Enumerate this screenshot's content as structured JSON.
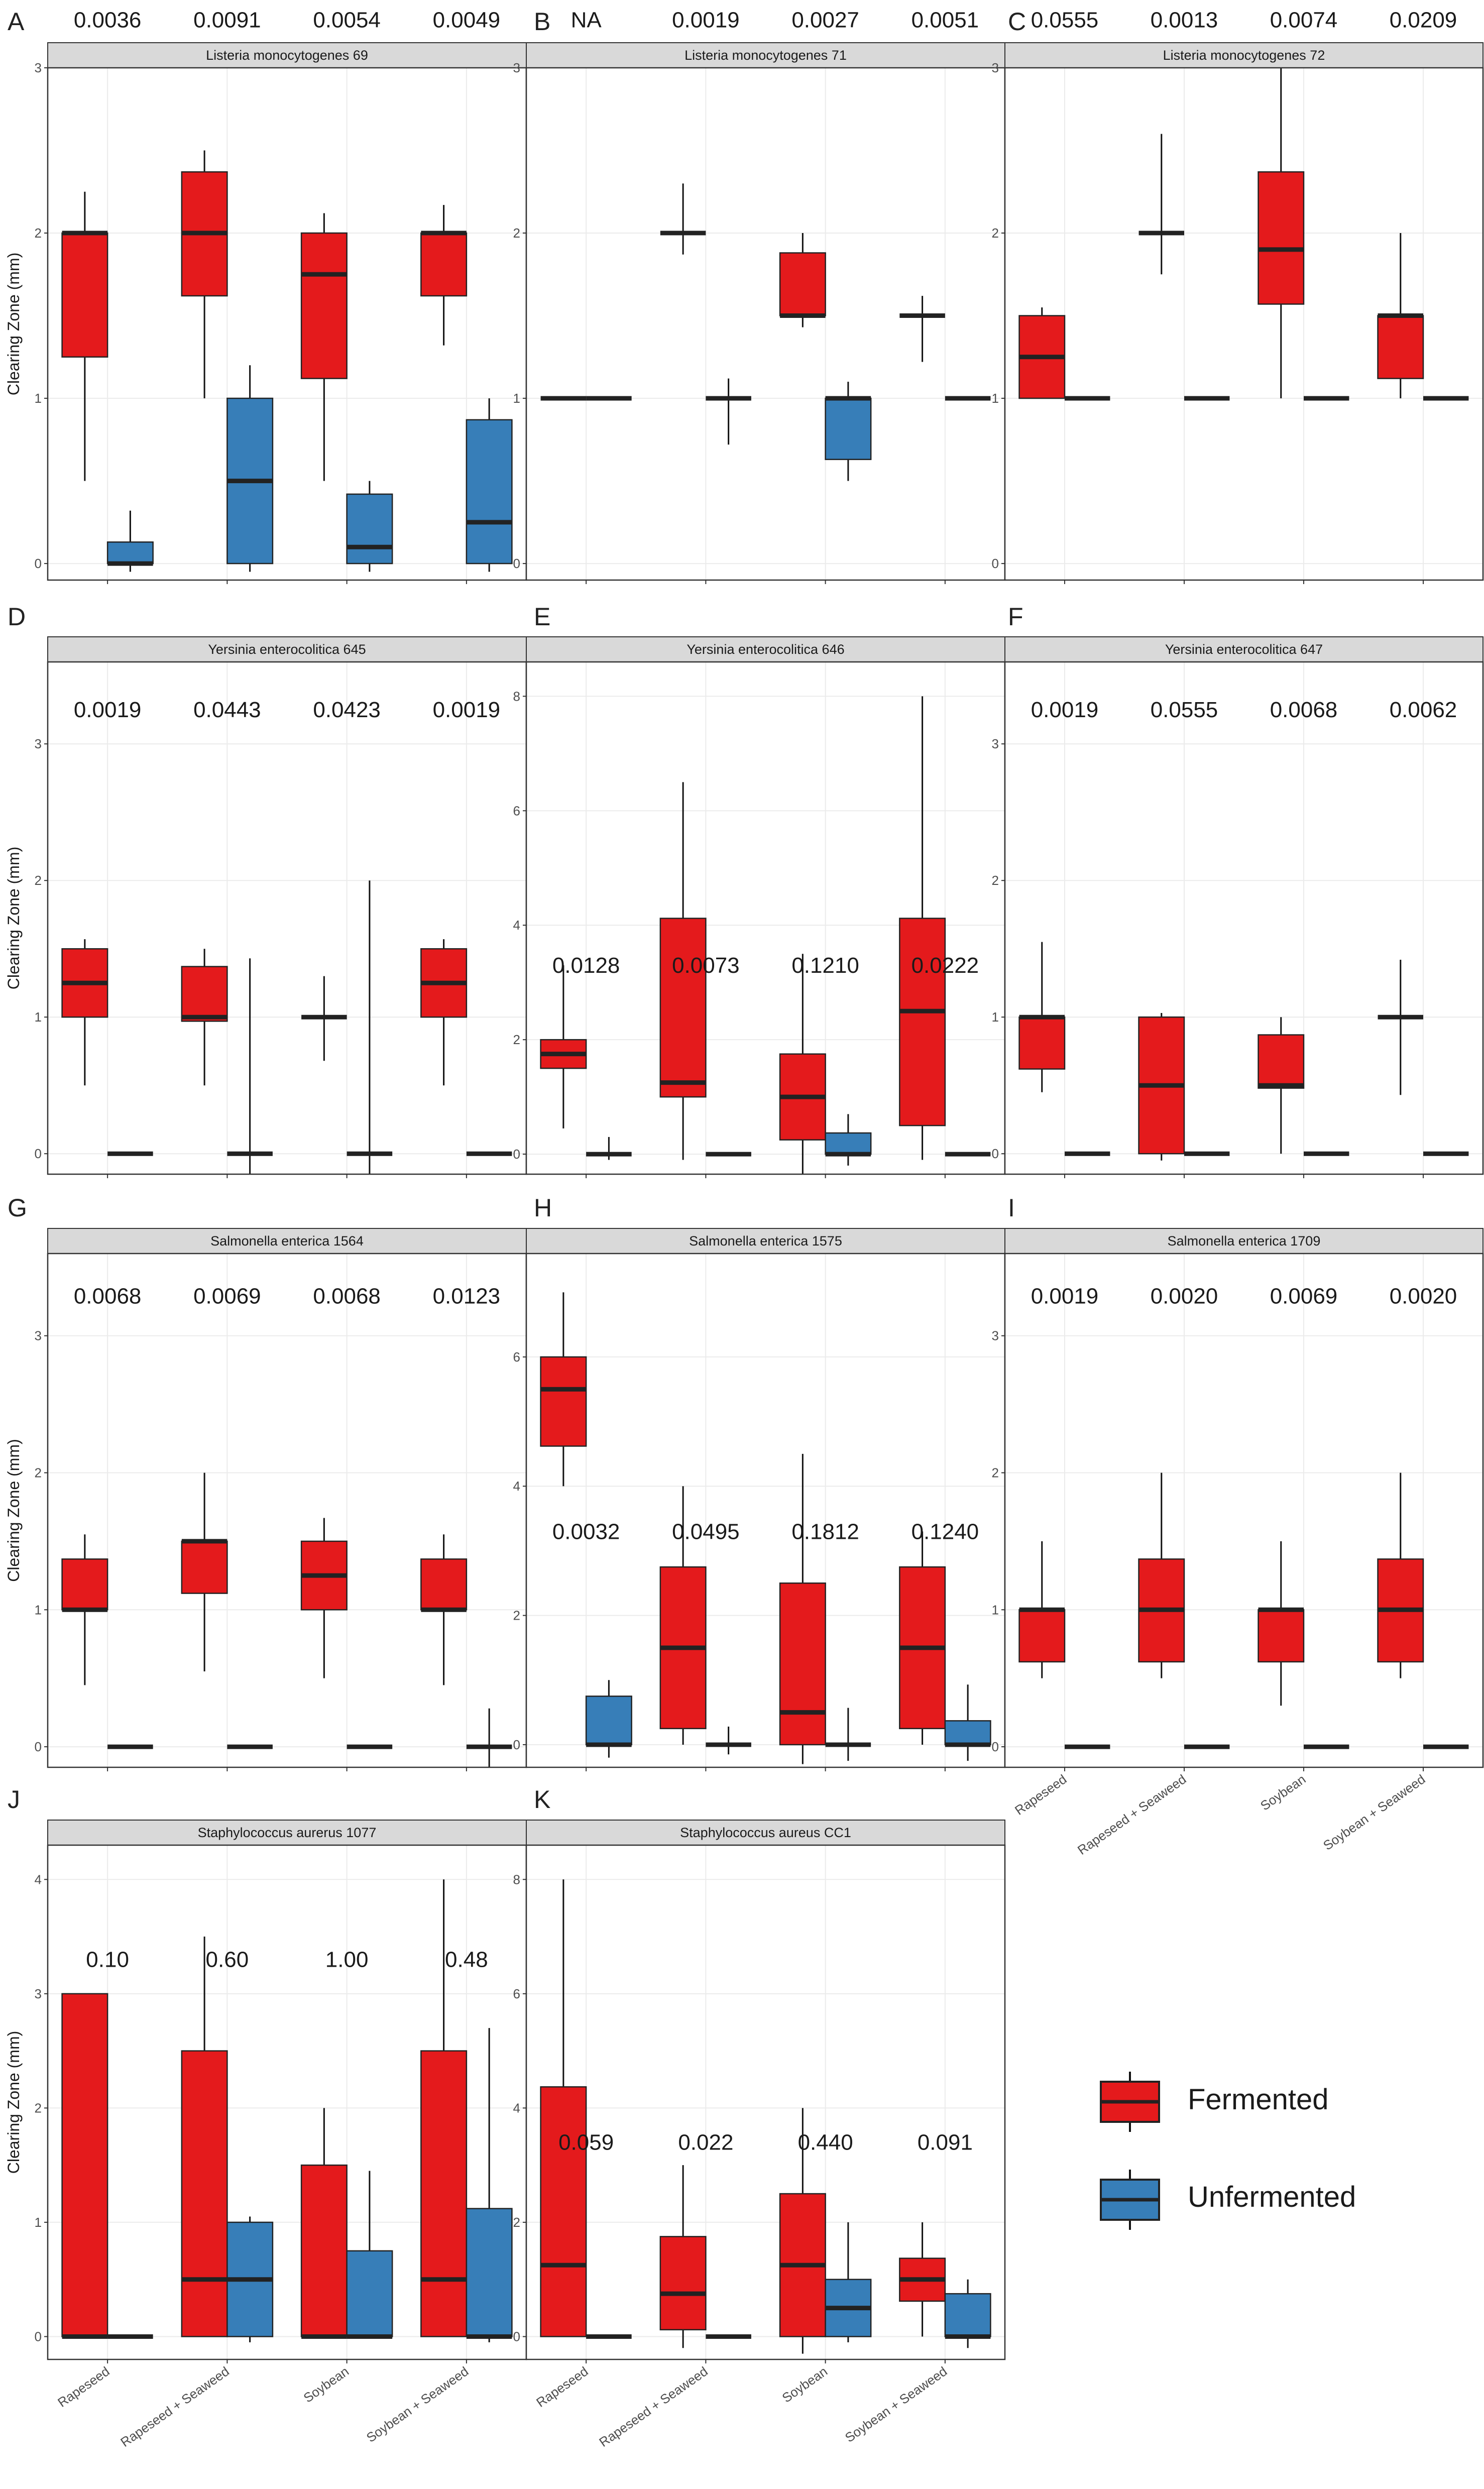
{
  "colors": {
    "fermented": "#e41a1c",
    "unfermented": "#377eb8",
    "strip": "#d9d9d9",
    "grid": "#ebebeb"
  },
  "legend": {
    "items": [
      {
        "label": "Fermented",
        "color": "#e41a1c"
      },
      {
        "label": "Unfermented",
        "color": "#377eb8"
      }
    ]
  },
  "y_axis_label": "Clearing Zone (mm)",
  "x_categories": [
    "Rapeseed",
    "Rapeseed + Seaweed",
    "Soybean",
    "Soybean + Seaweed"
  ],
  "chart_data": [
    {
      "type": "boxplot",
      "letter": "A",
      "title": "Listeria monocytogenes 69",
      "ylim": [
        -0.1,
        3.0
      ],
      "yticks": [
        0,
        1,
        2,
        3
      ],
      "pvalues": [
        "0.0036",
        "0.0091",
        "0.0054",
        "0.0049"
      ],
      "pvalue_y": 3.29,
      "groups": [
        {
          "fermented": {
            "lw": 0.5,
            "q1": 1.25,
            "median": 2.0,
            "q3": 2.0,
            "uw": 2.25
          },
          "unfermented": {
            "lw": -0.05,
            "q1": 0.0,
            "median": 0.0,
            "q3": 0.13,
            "uw": 0.32
          }
        },
        {
          "fermented": {
            "lw": 1.0,
            "q1": 1.62,
            "median": 2.0,
            "q3": 2.37,
            "uw": 2.5
          },
          "unfermented": {
            "lw": -0.05,
            "q1": 0.0,
            "median": 0.5,
            "q3": 1.0,
            "uw": 1.2
          }
        },
        {
          "fermented": {
            "lw": 0.5,
            "q1": 1.12,
            "median": 1.75,
            "q3": 2.0,
            "uw": 2.12
          },
          "unfermented": {
            "lw": -0.05,
            "q1": 0.0,
            "median": 0.1,
            "q3": 0.42,
            "uw": 0.5
          }
        },
        {
          "fermented": {
            "lw": 1.32,
            "q1": 1.62,
            "median": 2.0,
            "q3": 2.0,
            "uw": 2.17
          },
          "unfermented": {
            "lw": -0.05,
            "q1": 0.0,
            "median": 0.25,
            "q3": 0.87,
            "uw": 1.0
          }
        }
      ]
    },
    {
      "type": "boxplot",
      "letter": "B",
      "title": "Listeria monocytogenes 71",
      "ylim": [
        -0.1,
        3.0
      ],
      "yticks": [
        0,
        1,
        2,
        3
      ],
      "pvalues": [
        "NA",
        "0.0019",
        "0.0027",
        "0.0051"
      ],
      "pvalue_y": 3.29,
      "groups": [
        {
          "fermented": {
            "lw": 1.0,
            "q1": 1.0,
            "median": 1.0,
            "q3": 1.0,
            "uw": 1.0
          },
          "unfermented": {
            "lw": 1.0,
            "q1": 1.0,
            "median": 1.0,
            "q3": 1.0,
            "uw": 1.0
          }
        },
        {
          "fermented": {
            "lw": 1.87,
            "q1": 2.0,
            "median": 2.0,
            "q3": 2.0,
            "uw": 2.3
          },
          "unfermented": {
            "lw": 0.72,
            "q1": 1.0,
            "median": 1.0,
            "q3": 1.0,
            "uw": 1.12
          }
        },
        {
          "fermented": {
            "lw": 1.43,
            "q1": 1.5,
            "median": 1.5,
            "q3": 1.88,
            "uw": 2.0
          },
          "unfermented": {
            "lw": 0.5,
            "q1": 0.63,
            "median": 1.0,
            "q3": 1.0,
            "uw": 1.1
          }
        },
        {
          "fermented": {
            "lw": 1.22,
            "q1": 1.5,
            "median": 1.5,
            "q3": 1.5,
            "uw": 1.62
          },
          "unfermented": {
            "lw": 1.0,
            "q1": 1.0,
            "median": 1.0,
            "q3": 1.0,
            "uw": 1.0
          }
        }
      ]
    },
    {
      "type": "boxplot",
      "letter": "C",
      "title": "Listeria monocytogenes 72",
      "ylim": [
        -0.1,
        3.0
      ],
      "yticks": [
        0,
        1,
        2,
        3
      ],
      "pvalues": [
        "0.0555",
        "0.0013",
        "0.0074",
        "0.0209"
      ],
      "pvalue_y": 3.29,
      "groups": [
        {
          "fermented": {
            "lw": 1.0,
            "q1": 1.0,
            "median": 1.25,
            "q3": 1.5,
            "uw": 1.55
          },
          "unfermented": {
            "lw": 1.0,
            "q1": 1.0,
            "median": 1.0,
            "q3": 1.0,
            "uw": 1.0
          }
        },
        {
          "fermented": {
            "lw": 1.75,
            "q1": 2.0,
            "median": 2.0,
            "q3": 2.0,
            "uw": 2.6
          },
          "unfermented": {
            "lw": 1.0,
            "q1": 1.0,
            "median": 1.0,
            "q3": 1.0,
            "uw": 1.0
          }
        },
        {
          "fermented": {
            "lw": 1.0,
            "q1": 1.57,
            "median": 1.9,
            "q3": 2.37,
            "uw": 3.0
          },
          "unfermented": {
            "lw": 1.0,
            "q1": 1.0,
            "median": 1.0,
            "q3": 1.0,
            "uw": 1.0
          }
        },
        {
          "fermented": {
            "lw": 1.0,
            "q1": 1.12,
            "median": 1.5,
            "q3": 1.5,
            "uw": 2.0
          },
          "unfermented": {
            "lw": 1.0,
            "q1": 1.0,
            "median": 1.0,
            "q3": 1.0,
            "uw": 1.0
          }
        }
      ]
    },
    {
      "type": "boxplot",
      "letter": "D",
      "title": "Yersinia enterocolitica 645",
      "ylim": [
        -0.15,
        3.6
      ],
      "yticks": [
        0,
        1,
        2,
        3
      ],
      "pvalues": [
        "0.0019",
        "0.0443",
        "0.0423",
        "0.0019"
      ],
      "pvalue_y": 3.25,
      "groups": [
        {
          "fermented": {
            "lw": 0.5,
            "q1": 1.0,
            "median": 1.25,
            "q3": 1.5,
            "uw": 1.57
          },
          "unfermented": {
            "lw": 0.0,
            "q1": 0.0,
            "median": 0.0,
            "q3": 0.0,
            "uw": 0.0
          }
        },
        {
          "fermented": {
            "lw": 0.5,
            "q1": 0.97,
            "median": 1.0,
            "q3": 1.37,
            "uw": 1.5
          },
          "unfermented": {
            "lw": -0.15,
            "q1": 0.0,
            "median": 0.0,
            "q3": 0.0,
            "uw": 1.43
          }
        },
        {
          "fermented": {
            "lw": 0.68,
            "q1": 1.0,
            "median": 1.0,
            "q3": 1.0,
            "uw": 1.3
          },
          "unfermented": {
            "lw": -0.15,
            "q1": 0.0,
            "median": 0.0,
            "q3": 0.0,
            "uw": 2.0
          }
        },
        {
          "fermented": {
            "lw": 0.5,
            "q1": 1.0,
            "median": 1.25,
            "q3": 1.5,
            "uw": 1.57
          },
          "unfermented": {
            "lw": 0.0,
            "q1": 0.0,
            "median": 0.0,
            "q3": 0.0,
            "uw": 0.0
          }
        }
      ]
    },
    {
      "type": "boxplot",
      "letter": "E",
      "title": "Yersinia enterocolitica 646",
      "ylim": [
        -0.35,
        8.6
      ],
      "yticks": [
        0,
        2,
        4,
        6,
        8
      ],
      "pvalues": [
        "0.0128",
        "0.0073",
        "0.1210",
        "0.0222"
      ],
      "pvalue_y": 3.3,
      "groups": [
        {
          "fermented": {
            "lw": 0.45,
            "q1": 1.5,
            "median": 1.75,
            "q3": 2.0,
            "uw": 3.3
          },
          "unfermented": {
            "lw": -0.1,
            "q1": 0.0,
            "median": 0.0,
            "q3": 0.0,
            "uw": 0.3
          }
        },
        {
          "fermented": {
            "lw": -0.1,
            "q1": 1.0,
            "median": 1.25,
            "q3": 4.12,
            "uw": 6.5
          },
          "unfermented": {
            "lw": 0.0,
            "q1": 0.0,
            "median": 0.0,
            "q3": 0.0,
            "uw": 0.0
          }
        },
        {
          "fermented": {
            "lw": -0.35,
            "q1": 0.25,
            "median": 1.0,
            "q3": 1.75,
            "uw": 3.5
          },
          "unfermented": {
            "lw": -0.2,
            "q1": 0.0,
            "median": 0.0,
            "q3": 0.37,
            "uw": 0.7
          }
        },
        {
          "fermented": {
            "lw": -0.1,
            "q1": 0.5,
            "median": 2.5,
            "q3": 4.12,
            "uw": 8.0
          },
          "unfermented": {
            "lw": 0.0,
            "q1": 0.0,
            "median": 0.0,
            "q3": 0.0,
            "uw": 0.0
          }
        }
      ]
    },
    {
      "type": "boxplot",
      "letter": "F",
      "title": "Yersinia enterocolitica 647",
      "ylim": [
        -0.15,
        3.6
      ],
      "yticks": [
        0,
        1,
        2,
        3
      ],
      "pvalues": [
        "0.0019",
        "0.0555",
        "0.0068",
        "0.0062"
      ],
      "pvalue_y": 3.25,
      "groups": [
        {
          "fermented": {
            "lw": 0.45,
            "q1": 0.62,
            "median": 1.0,
            "q3": 1.0,
            "uw": 1.55
          },
          "unfermented": {
            "lw": 0.0,
            "q1": 0.0,
            "median": 0.0,
            "q3": 0.0,
            "uw": 0.0
          }
        },
        {
          "fermented": {
            "lw": -0.05,
            "q1": 0.0,
            "median": 0.5,
            "q3": 1.0,
            "uw": 1.03
          },
          "unfermented": {
            "lw": 0.0,
            "q1": 0.0,
            "median": 0.0,
            "q3": 0.0,
            "uw": 0.0
          }
        },
        {
          "fermented": {
            "lw": 0.0,
            "q1": 0.48,
            "median": 0.5,
            "q3": 0.87,
            "uw": 1.0
          },
          "unfermented": {
            "lw": 0.0,
            "q1": 0.0,
            "median": 0.0,
            "q3": 0.0,
            "uw": 0.0
          }
        },
        {
          "fermented": {
            "lw": 0.43,
            "q1": 1.0,
            "median": 1.0,
            "q3": 1.0,
            "uw": 1.42
          },
          "unfermented": {
            "lw": 0.0,
            "q1": 0.0,
            "median": 0.0,
            "q3": 0.0,
            "uw": 0.0
          }
        }
      ]
    },
    {
      "type": "boxplot",
      "letter": "G",
      "title": "Salmonella enterica 1564",
      "ylim": [
        -0.15,
        3.6
      ],
      "yticks": [
        0,
        1,
        2,
        3
      ],
      "pvalues": [
        "0.0068",
        "0.0069",
        "0.0068",
        "0.0123"
      ],
      "pvalue_y": 3.29,
      "groups": [
        {
          "fermented": {
            "lw": 0.45,
            "q1": 1.0,
            "median": 1.0,
            "q3": 1.37,
            "uw": 1.55
          },
          "unfermented": {
            "lw": 0.0,
            "q1": 0.0,
            "median": 0.0,
            "q3": 0.0,
            "uw": 0.0
          }
        },
        {
          "fermented": {
            "lw": 0.55,
            "q1": 1.12,
            "median": 1.5,
            "q3": 1.5,
            "uw": 2.0
          },
          "unfermented": {
            "lw": 0.0,
            "q1": 0.0,
            "median": 0.0,
            "q3": 0.0,
            "uw": 0.0
          }
        },
        {
          "fermented": {
            "lw": 0.5,
            "q1": 1.0,
            "median": 1.25,
            "q3": 1.5,
            "uw": 1.67
          },
          "unfermented": {
            "lw": 0.0,
            "q1": 0.0,
            "median": 0.0,
            "q3": 0.0,
            "uw": 0.0
          }
        },
        {
          "fermented": {
            "lw": 0.45,
            "q1": 1.0,
            "median": 1.0,
            "q3": 1.37,
            "uw": 1.55
          },
          "unfermented": {
            "lw": -0.15,
            "q1": 0.0,
            "median": 0.0,
            "q3": 0.0,
            "uw": 0.28
          }
        }
      ]
    },
    {
      "type": "boxplot",
      "letter": "H",
      "title": "Salmonella enterica 1575",
      "ylim": [
        -0.35,
        7.6
      ],
      "yticks": [
        0,
        2,
        4,
        6
      ],
      "pvalues": [
        "0.0032",
        "0.0495",
        "0.1812",
        "0.1240"
      ],
      "pvalue_y": 3.3,
      "groups": [
        {
          "fermented": {
            "lw": 4.0,
            "q1": 4.62,
            "median": 5.5,
            "q3": 6.0,
            "uw": 7.0
          },
          "unfermented": {
            "lw": -0.2,
            "q1": 0.0,
            "median": 0.0,
            "q3": 0.75,
            "uw": 1.0
          }
        },
        {
          "fermented": {
            "lw": 0.0,
            "q1": 0.25,
            "median": 1.5,
            "q3": 2.75,
            "uw": 4.0
          },
          "unfermented": {
            "lw": -0.15,
            "q1": 0.0,
            "median": 0.0,
            "q3": 0.0,
            "uw": 0.28
          }
        },
        {
          "fermented": {
            "lw": -0.3,
            "q1": 0.0,
            "median": 0.5,
            "q3": 2.5,
            "uw": 4.5
          },
          "unfermented": {
            "lw": -0.25,
            "q1": 0.0,
            "median": 0.0,
            "q3": 0.0,
            "uw": 0.57
          }
        },
        {
          "fermented": {
            "lw": 0.0,
            "q1": 0.25,
            "median": 1.5,
            "q3": 2.75,
            "uw": 3.3
          },
          "unfermented": {
            "lw": -0.25,
            "q1": 0.0,
            "median": 0.0,
            "q3": 0.37,
            "uw": 0.93
          }
        }
      ]
    },
    {
      "type": "boxplot",
      "letter": "I",
      "title": "Salmonella enterica 1709",
      "ylim": [
        -0.15,
        3.6
      ],
      "yticks": [
        0,
        1,
        2,
        3
      ],
      "pvalues": [
        "0.0019",
        "0.0020",
        "0.0069",
        "0.0020"
      ],
      "pvalue_y": 3.29,
      "groups": [
        {
          "fermented": {
            "lw": 0.5,
            "q1": 0.62,
            "median": 1.0,
            "q3": 1.0,
            "uw": 1.5
          },
          "unfermented": {
            "lw": 0.0,
            "q1": 0.0,
            "median": 0.0,
            "q3": 0.0,
            "uw": 0.0
          }
        },
        {
          "fermented": {
            "lw": 0.5,
            "q1": 0.62,
            "median": 1.0,
            "q3": 1.37,
            "uw": 2.0
          },
          "unfermented": {
            "lw": 0.0,
            "q1": 0.0,
            "median": 0.0,
            "q3": 0.0,
            "uw": 0.0
          }
        },
        {
          "fermented": {
            "lw": 0.3,
            "q1": 0.62,
            "median": 1.0,
            "q3": 1.0,
            "uw": 1.5
          },
          "unfermented": {
            "lw": 0.0,
            "q1": 0.0,
            "median": 0.0,
            "q3": 0.0,
            "uw": 0.0
          }
        },
        {
          "fermented": {
            "lw": 0.5,
            "q1": 0.62,
            "median": 1.0,
            "q3": 1.37,
            "uw": 2.0
          },
          "unfermented": {
            "lw": 0.0,
            "q1": 0.0,
            "median": 0.0,
            "q3": 0.0,
            "uw": 0.0
          }
        }
      ]
    },
    {
      "type": "boxplot",
      "letter": "J",
      "title": "Staphylococcus aurerus 1077",
      "ylim": [
        -0.2,
        4.3
      ],
      "yticks": [
        0,
        1,
        2,
        3,
        4
      ],
      "pvalues": [
        "0.10",
        "0.60",
        "1.00",
        "0.48"
      ],
      "pvalue_y": 3.3,
      "groups": [
        {
          "fermented": {
            "lw": 0.0,
            "q1": 0.0,
            "median": 0.0,
            "q3": 3.0,
            "uw": 2.85
          },
          "unfermented": {
            "lw": 0.0,
            "q1": 0.0,
            "median": 0.0,
            "q3": 0.0,
            "uw": 0.0
          }
        },
        {
          "fermented": {
            "lw": 0.0,
            "q1": 0.0,
            "median": 0.5,
            "q3": 2.5,
            "uw": 3.5
          },
          "unfermented": {
            "lw": -0.05,
            "q1": 0.0,
            "median": 0.5,
            "q3": 1.0,
            "uw": 1.05
          }
        },
        {
          "fermented": {
            "lw": 0.0,
            "q1": 0.0,
            "median": 0.0,
            "q3": 1.5,
            "uw": 2.0
          },
          "unfermented": {
            "lw": 0.0,
            "q1": 0.0,
            "median": 0.0,
            "q3": 0.75,
            "uw": 1.45
          }
        },
        {
          "fermented": {
            "lw": 0.0,
            "q1": 0.0,
            "median": 0.5,
            "q3": 2.5,
            "uw": 4.0
          },
          "unfermented": {
            "lw": -0.05,
            "q1": 0.0,
            "median": 0.0,
            "q3": 1.12,
            "uw": 2.7
          }
        }
      ]
    },
    {
      "type": "boxplot",
      "letter": "K",
      "title": "Staphylococcus aureus CC1",
      "ylim": [
        -0.4,
        8.6
      ],
      "yticks": [
        0,
        2,
        4,
        6,
        8
      ],
      "pvalues": [
        "0.059",
        "0.022",
        "0.440",
        "0.091"
      ],
      "pvalue_y": 3.4,
      "groups": [
        {
          "fermented": {
            "lw": 0.0,
            "q1": 0.0,
            "median": 1.25,
            "q3": 4.37,
            "uw": 8.0
          },
          "unfermented": {
            "lw": 0.0,
            "q1": 0.0,
            "median": 0.0,
            "q3": 0.0,
            "uw": 0.0
          }
        },
        {
          "fermented": {
            "lw": -0.2,
            "q1": 0.12,
            "median": 0.75,
            "q3": 1.75,
            "uw": 3.0
          },
          "unfermented": {
            "lw": 0.0,
            "q1": 0.0,
            "median": 0.0,
            "q3": 0.0,
            "uw": 0.0
          }
        },
        {
          "fermented": {
            "lw": -0.3,
            "q1": 0.0,
            "median": 1.25,
            "q3": 2.5,
            "uw": 4.0
          },
          "unfermented": {
            "lw": -0.1,
            "q1": 0.0,
            "median": 0.5,
            "q3": 1.0,
            "uw": 2.0
          }
        },
        {
          "fermented": {
            "lw": 0.0,
            "q1": 0.62,
            "median": 1.0,
            "q3": 1.37,
            "uw": 2.0
          },
          "unfermented": {
            "lw": -0.2,
            "q1": 0.0,
            "median": 0.0,
            "q3": 0.75,
            "uw": 1.0
          }
        }
      ]
    }
  ]
}
